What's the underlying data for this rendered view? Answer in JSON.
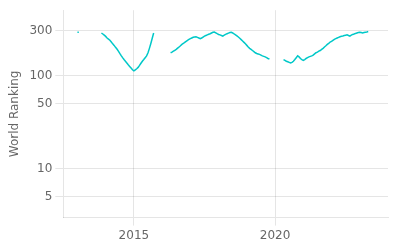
{
  "chart_data": {
    "type": "line",
    "y_label": "World Ranking",
    "color": "#00c8c8",
    "log": "y",
    "grid": true,
    "xlim": [
      2012.5,
      2024.0
    ],
    "xticks": [
      2015,
      2020
    ],
    "ylim": [
      3,
      500
    ],
    "yticks": [
      5,
      10,
      50,
      100,
      300
    ],
    "series": [
      {
        "x": [
          2013.0,
          2013.05
        ],
        "values": [
          290,
          290
        ]
      },
      {
        "x": [
          2013.85,
          2013.9,
          2013.95,
          2014.0,
          2014.05,
          2014.1,
          2014.15,
          2014.2,
          2014.25,
          2014.3,
          2014.35,
          2014.4,
          2014.45,
          2014.5,
          2014.55,
          2014.6,
          2014.65,
          2014.7,
          2014.75,
          2014.8,
          2014.85,
          2014.9,
          2014.95,
          2015.0,
          2015.05,
          2015.1,
          2015.15,
          2015.2,
          2015.25,
          2015.3,
          2015.35,
          2015.4,
          2015.45,
          2015.5,
          2015.55,
          2015.6,
          2015.65,
          2015.7
        ],
        "values": [
          285,
          278,
          270,
          262,
          252,
          245,
          238,
          228,
          218,
          210,
          200,
          192,
          182,
          172,
          163,
          155,
          148,
          142,
          136,
          130,
          125,
          120,
          115,
          112,
          115,
          118,
          122,
          128,
          135,
          142,
          148,
          155,
          162,
          175,
          195,
          220,
          250,
          285
        ]
      },
      {
        "x": [
          2016.3,
          2016.35,
          2016.4,
          2016.45,
          2016.5,
          2016.55,
          2016.6,
          2016.65,
          2016.7,
          2016.75,
          2016.8,
          2016.85,
          2016.9,
          2016.95,
          2017.0,
          2017.05,
          2017.1,
          2017.15,
          2017.2,
          2017.25,
          2017.3,
          2017.35,
          2017.4,
          2017.45,
          2017.5,
          2017.55,
          2017.6,
          2017.65,
          2017.7,
          2017.75,
          2017.8,
          2017.85,
          2017.9,
          2017.95,
          2018.0,
          2018.05,
          2018.1,
          2018.15,
          2018.2,
          2018.25,
          2018.3,
          2018.35,
          2018.4,
          2018.45,
          2018.5,
          2018.55,
          2018.6,
          2018.65,
          2018.7,
          2018.75,
          2018.8,
          2018.85,
          2018.9,
          2018.95,
          2019.0,
          2019.05,
          2019.1,
          2019.15,
          2019.2,
          2019.25,
          2019.3,
          2019.35,
          2019.4,
          2019.45,
          2019.5,
          2019.55,
          2019.6,
          2019.65,
          2019.7,
          2019.75,
          2019.8
        ],
        "values": [
          175,
          178,
          182,
          186,
          190,
          196,
          202,
          208,
          215,
          220,
          226,
          232,
          238,
          243,
          248,
          252,
          256,
          258,
          260,
          256,
          252,
          248,
          252,
          258,
          264,
          268,
          272,
          276,
          280,
          285,
          290,
          292,
          286,
          280,
          275,
          272,
          268,
          264,
          270,
          275,
          280,
          284,
          288,
          290,
          285,
          278,
          272,
          265,
          258,
          250,
          242,
          234,
          226,
          218,
          210,
          202,
          195,
          190,
          185,
          180,
          175,
          172,
          170,
          168,
          165,
          162,
          160,
          158,
          155,
          152,
          150
        ]
      },
      {
        "x": [
          2020.3,
          2020.35,
          2020.4,
          2020.45,
          2020.5,
          2020.55,
          2020.6,
          2020.65,
          2020.7,
          2020.75,
          2020.8,
          2020.85,
          2020.9,
          2020.95,
          2021.0,
          2021.05,
          2021.1,
          2021.15,
          2021.2,
          2021.25,
          2021.3,
          2021.35,
          2021.4,
          2021.45,
          2021.5,
          2021.55,
          2021.6,
          2021.65,
          2021.7,
          2021.75,
          2021.8,
          2021.85,
          2021.9,
          2021.95,
          2022.0,
          2022.05,
          2022.1,
          2022.15,
          2022.2,
          2022.25,
          2022.3,
          2022.35,
          2022.4,
          2022.45,
          2022.5,
          2022.55,
          2022.6,
          2022.65,
          2022.7,
          2022.75,
          2022.8,
          2022.85,
          2022.9,
          2022.95,
          2023.0,
          2023.05,
          2023.1,
          2023.15,
          2023.2,
          2023.25,
          2023.3
        ],
        "values": [
          148,
          145,
          142,
          140,
          138,
          136,
          138,
          142,
          148,
          155,
          162,
          158,
          152,
          148,
          145,
          148,
          152,
          155,
          158,
          160,
          162,
          165,
          170,
          175,
          178,
          182,
          185,
          190,
          195,
          202,
          208,
          215,
          220,
          228,
          232,
          238,
          244,
          248,
          252,
          256,
          260,
          263,
          265,
          268,
          270,
          272,
          268,
          264,
          270,
          275,
          278,
          282,
          285,
          288,
          290,
          288,
          285,
          288,
          290,
          292,
          295
        ]
      }
    ]
  }
}
